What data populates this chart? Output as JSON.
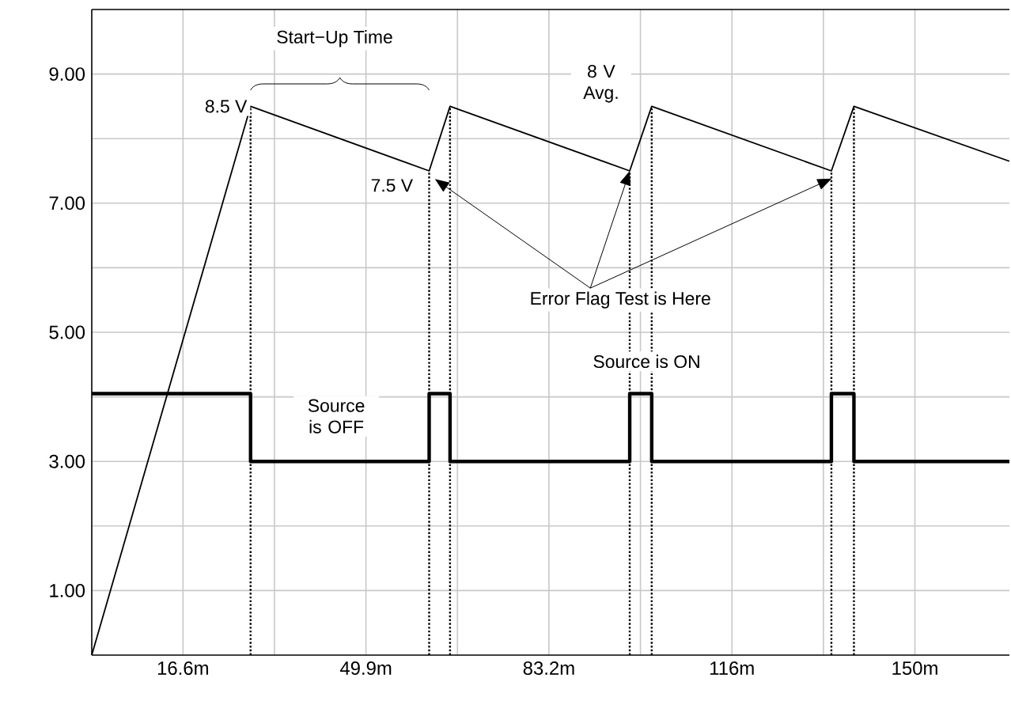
{
  "chart_data": {
    "type": "line",
    "annotations": [
      "Start−Up Time",
      {
        "text": "8.5 V",
        "x": 28.9,
        "y": 8.5
      },
      {
        "text": "7.5 V",
        "x": 61.4,
        "y": 7.5
      },
      "8 V Avg.",
      {
        "text": "Error Flag Test is Here",
        "x": 97.9,
        "y": 7.5
      },
      "Source is OFF",
      "Source is ON"
    ],
    "series": [
      {
        "color": "#000000",
        "x": [
          0,
          28.9,
          61.4,
          65.2,
          97.9,
          101.9,
          134.6,
          138.7,
          167
        ],
        "values": [
          0,
          8.5,
          7.5,
          8.5,
          7.5,
          8.5,
          7.5,
          8.5,
          7.65
        ]
      },
      {
        "type": "step",
        "color": "#000000",
        "x": [
          0,
          28.9,
          61.4,
          65.2,
          97.9,
          101.9,
          134.6,
          138.7,
          167
        ],
        "values": [
          4.05,
          3,
          4.05,
          3,
          4.05,
          3,
          4.05,
          3,
          3
        ]
      }
    ],
    "xlim": [
      0,
      167
    ],
    "ylim": [
      0,
      10
    ],
    "xticks": [
      {
        "value": 16.6,
        "label": "16.6m"
      },
      {
        "value": 33.25,
        "label": null
      },
      {
        "value": 49.9,
        "label": "49.9m"
      },
      {
        "value": 66.55,
        "label": null
      },
      {
        "value": 83.2,
        "label": "83.2m"
      },
      {
        "value": 99.85,
        "label": null
      },
      {
        "value": 116.5,
        "label": "116m"
      },
      {
        "value": 133.15,
        "label": null
      },
      {
        "value": 149.8,
        "label": "150m"
      }
    ],
    "yticks": [
      {
        "value": 1,
        "label": "1.00"
      },
      {
        "value": 2,
        "label": null
      },
      {
        "value": 3,
        "label": "3.00"
      },
      {
        "value": 4,
        "label": null
      },
      {
        "value": 5,
        "label": "5.00"
      },
      {
        "value": 6,
        "label": null
      },
      {
        "value": 7,
        "label": "7.00"
      },
      {
        "value": 8,
        "label": null
      },
      {
        "value": 9,
        "label": "9.00"
      }
    ],
    "grid": true,
    "ref_lines": [
      {
        "axis": "x",
        "value": 28.9,
        "color": "#000000",
        "line_style": "dotted"
      },
      {
        "axis": "x",
        "value": 61.4,
        "color": "#000000",
        "line_style": "dotted"
      },
      {
        "axis": "x",
        "value": 65.2,
        "color": "#000000",
        "line_style": "dotted"
      },
      {
        "axis": "x",
        "value": 97.9,
        "color": "#000000",
        "line_style": "dotted"
      },
      {
        "axis": "x",
        "value": 101.9,
        "color": "#000000",
        "line_style": "dotted"
      },
      {
        "axis": "x",
        "value": 134.6,
        "color": "#000000",
        "line_style": "dotted"
      },
      {
        "axis": "x",
        "value": 138.7,
        "color": "#000000",
        "line_style": "dotted"
      }
    ]
  }
}
